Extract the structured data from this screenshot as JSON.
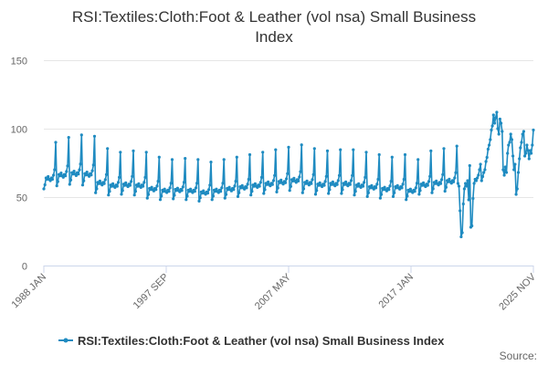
{
  "chart_data": {
    "type": "line",
    "title_lines": [
      "RSI:Textiles:Cloth:Foot & Leather (vol nsa) Small Business",
      "Index"
    ],
    "x_tick_labels": [
      "1988 JAN",
      "1997 SEP",
      "2007 MAY",
      "2017 JAN",
      "2025 NOV"
    ],
    "x_range": [
      "1988-01",
      "2025-11"
    ],
    "y_ticks": [
      0,
      50,
      100,
      150
    ],
    "ylim": [
      0,
      150
    ],
    "grid": true,
    "legend_position": "bottom",
    "credit": "Source:",
    "series": [
      {
        "name": "RSI:Textiles:Cloth:Foot & Leather (vol nsa) Small Business Index",
        "color": "#1f8bc1",
        "annual_pattern": [
          56,
          59,
          64,
          63,
          65,
          63,
          62,
          64,
          63,
          66,
          70,
          90
        ],
        "yearly": [
          {
            "year": 1988,
            "level": 1.0
          },
          {
            "year": 1989,
            "level": 1.04
          },
          {
            "year": 1990,
            "level": 1.06
          },
          {
            "year": 1991,
            "level": 1.05
          },
          {
            "year": 1992,
            "level": 0.95
          },
          {
            "year": 1993,
            "level": 0.92
          },
          {
            "year": 1994,
            "level": 0.93
          },
          {
            "year": 1995,
            "level": 0.92
          },
          {
            "year": 1996,
            "level": 0.88
          },
          {
            "year": 1997,
            "level": 0.86
          },
          {
            "year": 1998,
            "level": 0.87
          },
          {
            "year": 1999,
            "level": 0.86
          },
          {
            "year": 2000,
            "level": 0.84
          },
          {
            "year": 2001,
            "level": 0.86
          },
          {
            "year": 2002,
            "level": 0.88
          },
          {
            "year": 2003,
            "level": 0.9
          },
          {
            "year": 2004,
            "level": 0.92
          },
          {
            "year": 2005,
            "level": 0.94
          },
          {
            "year": 2006,
            "level": 0.96
          },
          {
            "year": 2007,
            "level": 0.98
          },
          {
            "year": 2008,
            "level": 0.95
          },
          {
            "year": 2009,
            "level": 0.93
          },
          {
            "year": 2010,
            "level": 0.94
          },
          {
            "year": 2011,
            "level": 0.94
          },
          {
            "year": 2012,
            "level": 0.92
          },
          {
            "year": 2013,
            "level": 0.9
          },
          {
            "year": 2014,
            "level": 0.88
          },
          {
            "year": 2015,
            "level": 0.9
          },
          {
            "year": 2016,
            "level": 0.86
          },
          {
            "year": 2017,
            "level": 0.93
          },
          {
            "year": 2018,
            "level": 0.95
          },
          {
            "year": 2019,
            "level": 0.97
          }
        ],
        "monthly_from_2020": [
          {
            "date": "2020-01",
            "value": 60
          },
          {
            "date": "2020-02",
            "value": 58
          },
          {
            "date": "2020-03",
            "value": 40
          },
          {
            "date": "2020-04",
            "value": 21
          },
          {
            "date": "2020-05",
            "value": 24
          },
          {
            "date": "2020-06",
            "value": 45
          },
          {
            "date": "2020-07",
            "value": 56
          },
          {
            "date": "2020-08",
            "value": 60
          },
          {
            "date": "2020-09",
            "value": 58
          },
          {
            "date": "2020-10",
            "value": 62
          },
          {
            "date": "2020-11",
            "value": 48
          },
          {
            "date": "2020-12",
            "value": 73
          },
          {
            "date": "2021-01",
            "value": 28
          },
          {
            "date": "2021-02",
            "value": 29
          },
          {
            "date": "2021-03",
            "value": 49
          },
          {
            "date": "2021-04",
            "value": 60
          },
          {
            "date": "2021-05",
            "value": 63
          },
          {
            "date": "2021-06",
            "value": 62
          },
          {
            "date": "2021-07",
            "value": 64
          },
          {
            "date": "2021-08",
            "value": 66
          },
          {
            "date": "2021-09",
            "value": 70
          },
          {
            "date": "2021-10",
            "value": 74
          },
          {
            "date": "2021-11",
            "value": 62
          },
          {
            "date": "2021-12",
            "value": 65
          },
          {
            "date": "2022-01",
            "value": 68
          },
          {
            "date": "2022-02",
            "value": 70
          },
          {
            "date": "2022-03",
            "value": 76
          },
          {
            "date": "2022-04",
            "value": 79
          },
          {
            "date": "2022-05",
            "value": 85
          },
          {
            "date": "2022-06",
            "value": 88
          },
          {
            "date": "2022-07",
            "value": 92
          },
          {
            "date": "2022-08",
            "value": 99
          },
          {
            "date": "2022-09",
            "value": 102
          },
          {
            "date": "2022-10",
            "value": 110
          },
          {
            "date": "2022-11",
            "value": 104
          },
          {
            "date": "2022-12",
            "value": 108
          },
          {
            "date": "2023-01",
            "value": 112
          },
          {
            "date": "2023-02",
            "value": 100
          },
          {
            "date": "2023-03",
            "value": 96
          },
          {
            "date": "2023-04",
            "value": 107
          },
          {
            "date": "2023-05",
            "value": 104
          },
          {
            "date": "2023-06",
            "value": 98
          },
          {
            "date": "2023-07",
            "value": 70
          },
          {
            "date": "2023-08",
            "value": 66
          },
          {
            "date": "2023-09",
            "value": 72
          },
          {
            "date": "2023-10",
            "value": 68
          },
          {
            "date": "2023-11",
            "value": 82
          },
          {
            "date": "2023-12",
            "value": 88
          },
          {
            "date": "2024-01",
            "value": 90
          },
          {
            "date": "2024-02",
            "value": 96
          },
          {
            "date": "2024-03",
            "value": 92
          },
          {
            "date": "2024-04",
            "value": 80
          },
          {
            "date": "2024-05",
            "value": 70
          },
          {
            "date": "2024-06",
            "value": 74
          },
          {
            "date": "2024-07",
            "value": 52
          },
          {
            "date": "2024-08",
            "value": 56
          },
          {
            "date": "2024-09",
            "value": 68
          },
          {
            "date": "2024-10",
            "value": 78
          },
          {
            "date": "2024-11",
            "value": 86
          },
          {
            "date": "2024-12",
            "value": 90
          },
          {
            "date": "2025-01",
            "value": 96
          },
          {
            "date": "2025-02",
            "value": 98
          },
          {
            "date": "2025-03",
            "value": 80
          },
          {
            "date": "2025-04",
            "value": 82
          },
          {
            "date": "2025-05",
            "value": 88
          },
          {
            "date": "2025-06",
            "value": 84
          },
          {
            "date": "2025-07",
            "value": 78
          },
          {
            "date": "2025-08",
            "value": 84
          },
          {
            "date": "2025-09",
            "value": 82
          },
          {
            "date": "2025-10",
            "value": 88
          },
          {
            "date": "2025-11",
            "value": 99
          }
        ]
      }
    ]
  }
}
